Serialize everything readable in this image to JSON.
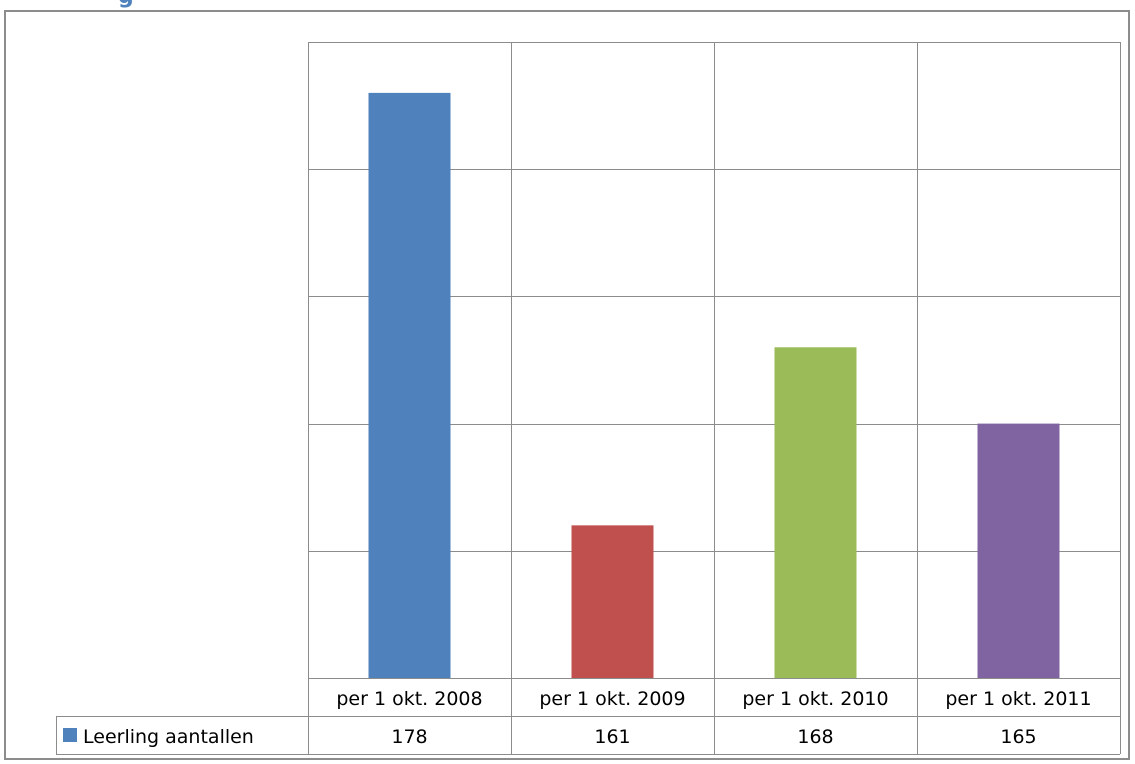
{
  "heading_fragment": "g",
  "chart_data": {
    "type": "bar",
    "categories": [
      "per 1 okt. 2008",
      "per 1 okt. 2009",
      "per 1 okt. 2010",
      "per 1 okt. 2011"
    ],
    "series": [
      {
        "name": "Leerling aantallen",
        "values": [
          178,
          161,
          168,
          165
        ]
      }
    ],
    "colors": [
      "#4f81bd",
      "#c0504d",
      "#9bbb59",
      "#8064a2"
    ],
    "legend_color": "#4f81bd",
    "ylim": [
      155,
      180
    ],
    "y_tick_step": 5,
    "show_y_tick_labels": false,
    "grid": true,
    "data_table": true,
    "title": "",
    "xlabel": "",
    "ylabel": ""
  }
}
